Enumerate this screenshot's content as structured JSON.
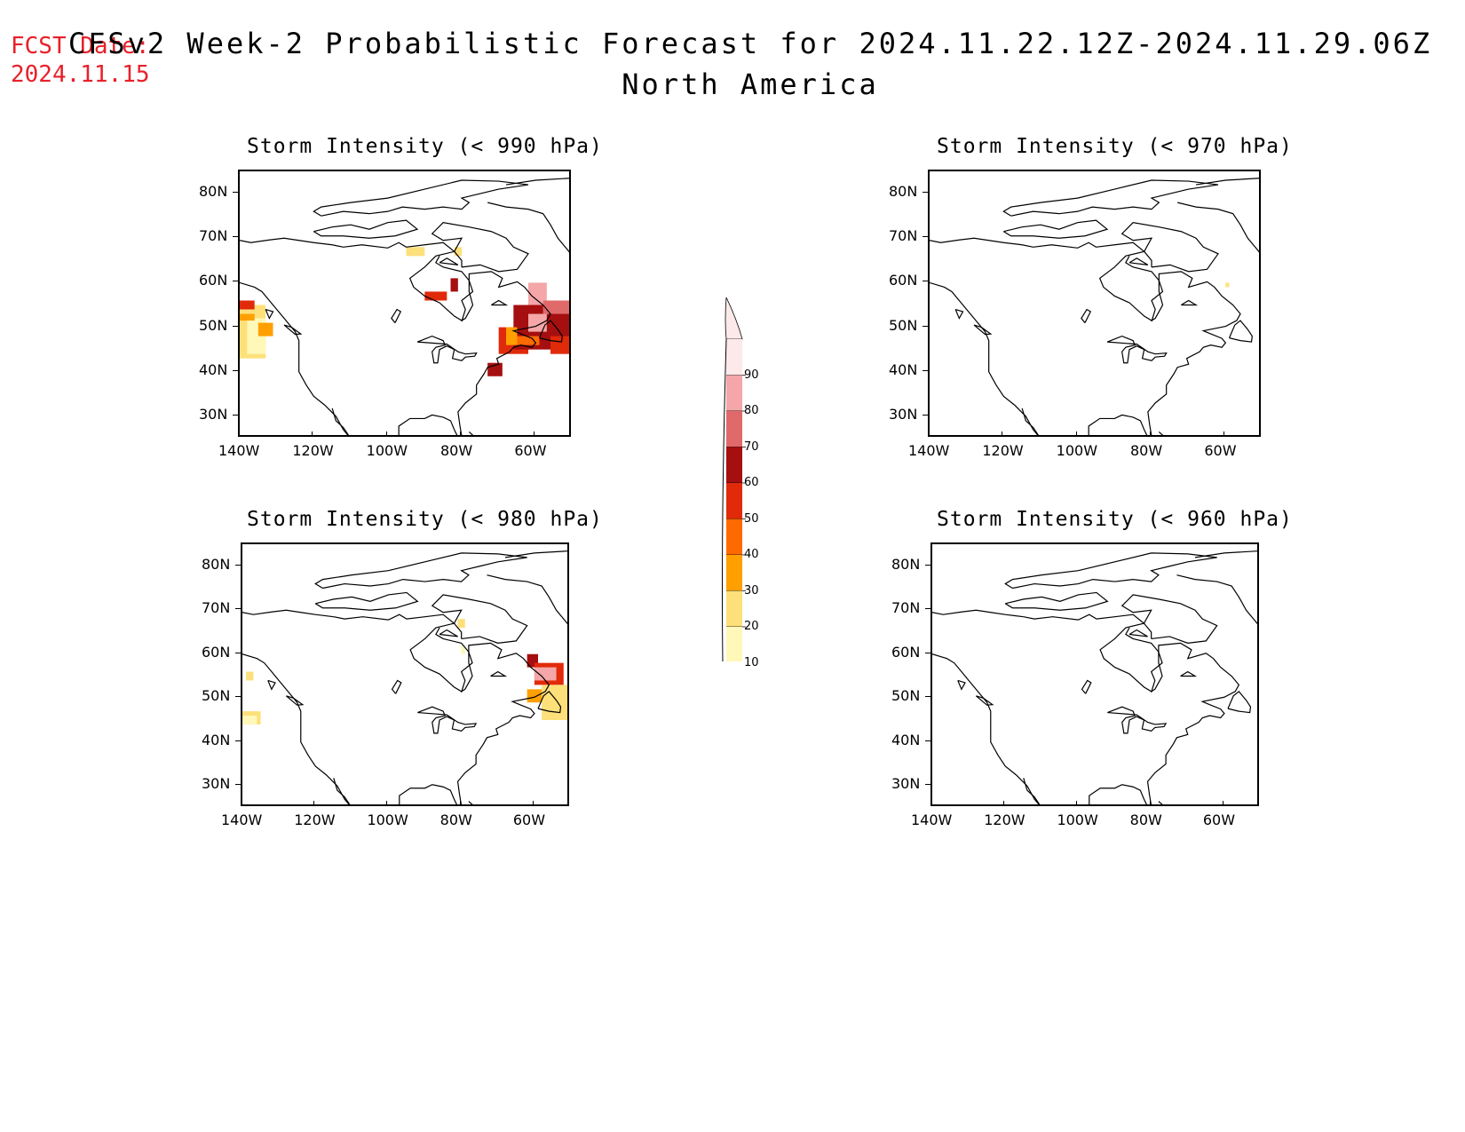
{
  "header": {
    "fcst_label": "FCST Date:",
    "fcst_date": "2024.11.15",
    "title": "CFSv2 Week-2 Probabilistic Forecast for 2024.11.22.12Z-2024.11.29.06Z",
    "subtitle": "North America"
  },
  "axes": {
    "lat_labels": [
      "80N",
      "70N",
      "60N",
      "50N",
      "40N",
      "30N"
    ],
    "lon_labels": [
      "140W",
      "120W",
      "100W",
      "80W",
      "60W"
    ]
  },
  "panels": [
    {
      "id": "p990",
      "title": "Storm Intensity (< 990 hPa)"
    },
    {
      "id": "p970",
      "title": "Storm Intensity (< 970 hPa)"
    },
    {
      "id": "p980",
      "title": "Storm Intensity (< 980 hPa)"
    },
    {
      "id": "p960",
      "title": "Storm Intensity (< 960 hPa)"
    }
  ],
  "colorbar": {
    "labels": [
      "90",
      "80",
      "70",
      "60",
      "50",
      "40",
      "30",
      "20",
      "10"
    ],
    "colors": [
      "#fde9ea",
      "#f4a6a8",
      "#e06a6a",
      "#a50f0f",
      "#e02a0a",
      "#ff6a00",
      "#ff9f00",
      "#fde07a",
      "#fff8b8"
    ]
  }
}
